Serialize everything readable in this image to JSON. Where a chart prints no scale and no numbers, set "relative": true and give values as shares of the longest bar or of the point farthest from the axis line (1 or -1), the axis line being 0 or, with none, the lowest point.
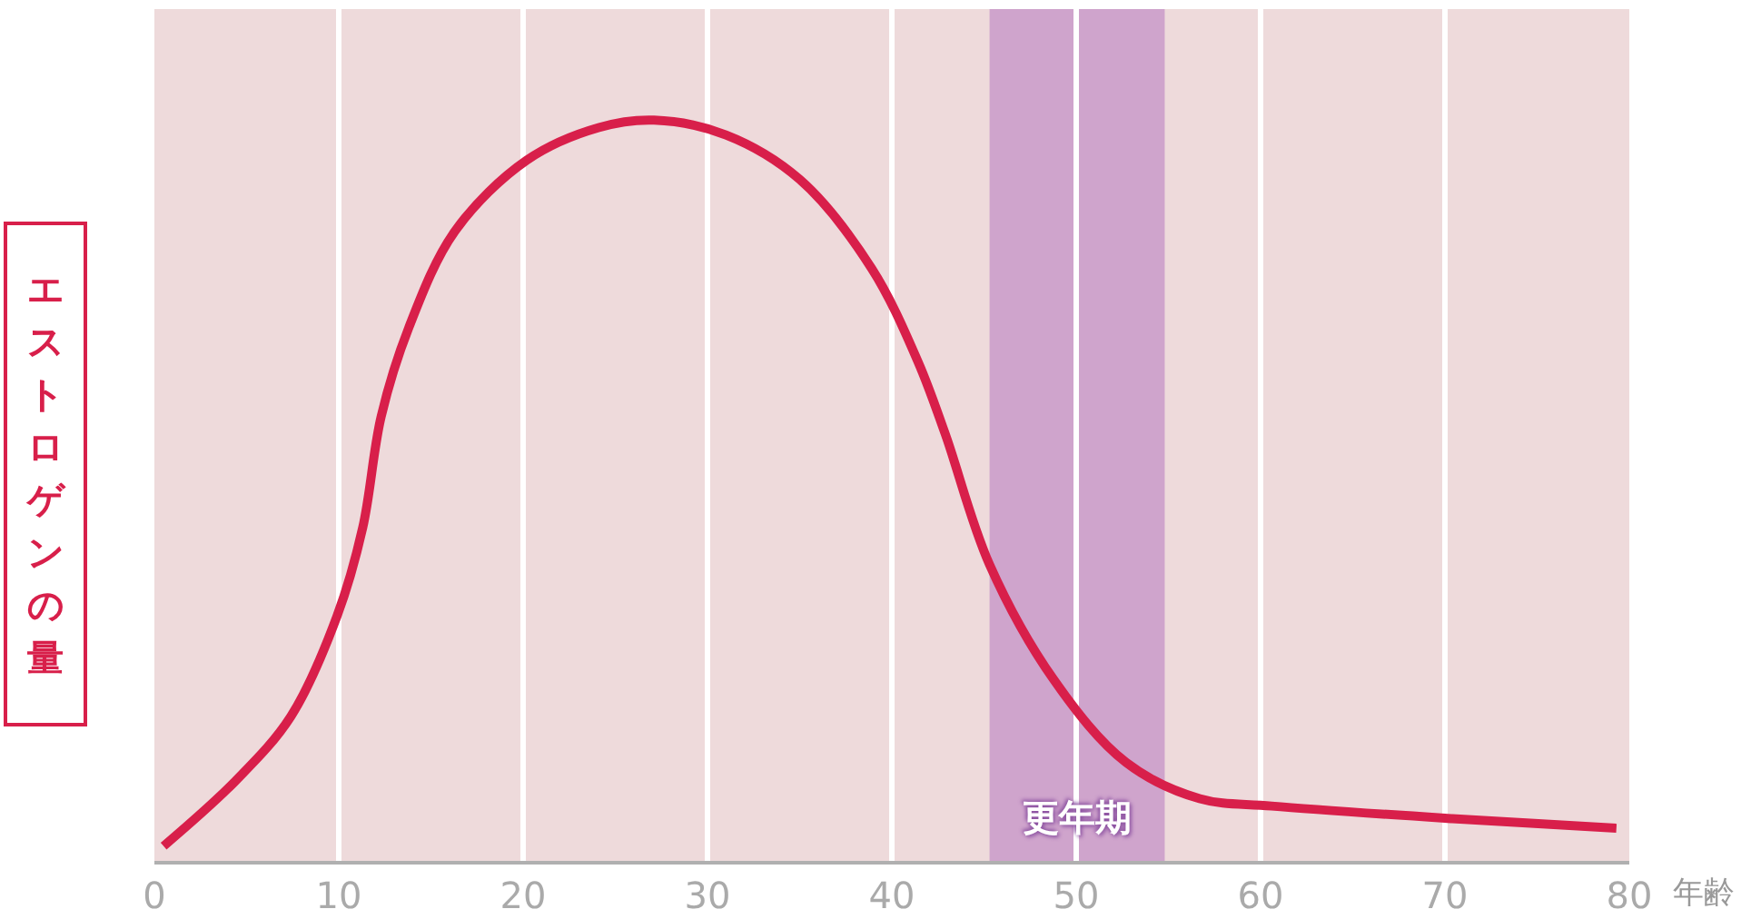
{
  "chart_data": {
    "type": "line",
    "relative": true,
    "xlabel": "年齢",
    "ylabel": "エストロゲンの量",
    "xlim": [
      0,
      80
    ],
    "xticks": [
      0,
      10,
      20,
      30,
      40,
      50,
      60,
      70,
      80
    ],
    "grid": "x",
    "marker": "none",
    "line_style": "solid",
    "series": [
      {
        "color": "#d81f4a",
        "x": [
          0.5,
          4.4,
          7.4,
          9.9,
          11.3,
          12.3,
          13.8,
          16.3,
          20.2,
          24.1,
          27.1,
          31,
          35,
          38.9,
          41.4,
          42.9,
          45.3,
          48.8,
          52.7,
          56.7,
          60.6,
          70.4,
          79.3
        ],
        "values": [
          0.02,
          0.108,
          0.195,
          0.33,
          0.45,
          0.6,
          0.72,
          0.85,
          0.946,
          0.99,
          1,
          0.98,
          0.92,
          0.8,
          0.675,
          0.576,
          0.4,
          0.244,
          0.133,
          0.084,
          0.074,
          0.057,
          0.044
        ]
      }
    ],
    "bands": [
      {
        "axis": "x",
        "from": 45.3,
        "to": 54.8,
        "label": "更年期",
        "color": "#cfa4cc"
      }
    ]
  }
}
